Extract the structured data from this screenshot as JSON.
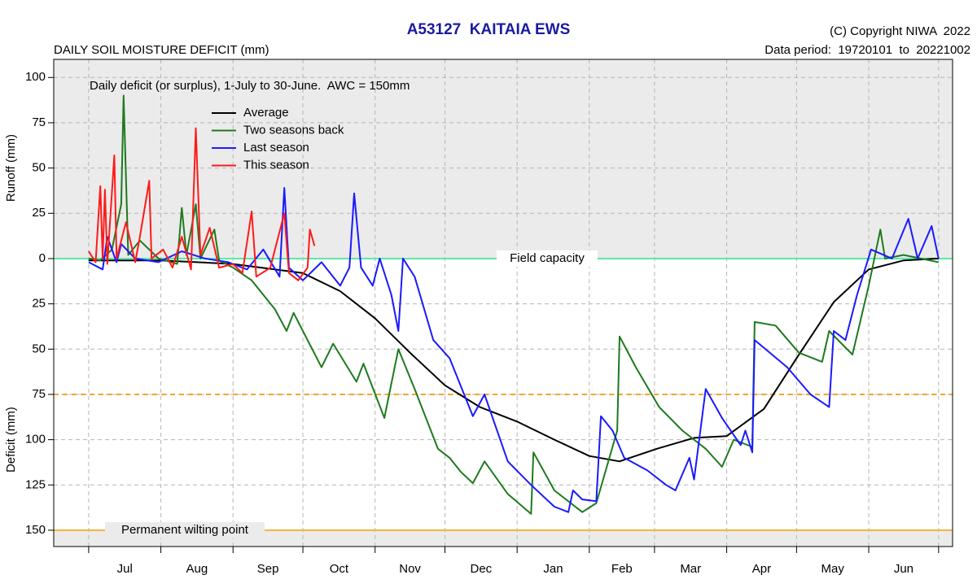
{
  "chart_data": {
    "type": "line",
    "title": "A53127  KAITAIA EWS",
    "subtitle": "DAILY SOIL MOISTURE DEFICIT (mm)",
    "copyright": "(C) Copyright NIWA  2022",
    "data_period": "Data period:  19720101  to  20221002",
    "annotation": "Daily deficit (or surplus), 1-July to 30-June.  AWC = 150mm",
    "y_label_top": "Runoff (mm)",
    "y_label_bottom": "Deficit (mm)",
    "categories": [
      "Jul",
      "Aug",
      "Sep",
      "Oct",
      "Nov",
      "Dec",
      "Jan",
      "Feb",
      "Mar",
      "Apr",
      "May",
      "Jun"
    ],
    "xlim": [
      -15,
      371
    ],
    "xticks": [
      0,
      31,
      62,
      92,
      123,
      153,
      184,
      215,
      243,
      274,
      304,
      335,
      365
    ],
    "ylim": [
      -159,
      110
    ],
    "yticks": [
      100,
      75,
      50,
      25,
      0,
      {
        "value": -25,
        "label": "25"
      },
      {
        "value": -50,
        "label": "50"
      },
      {
        "value": -75,
        "label": "75"
      },
      {
        "value": -100,
        "label": "100"
      },
      {
        "value": -125,
        "label": "125"
      },
      {
        "value": -150,
        "label": "150"
      }
    ],
    "grid": true,
    "reference_lines": [
      {
        "value": 0,
        "label": "Field capacity",
        "color": "#5ee8a8",
        "style": "solid"
      },
      {
        "value": -75,
        "color": "#f5a623",
        "style": "dashed"
      },
      {
        "value": -150,
        "label": "Permanent wilting point",
        "color": "#f5b53a",
        "style": "solid"
      }
    ],
    "series": [
      {
        "name": "Average",
        "color": "#000000",
        "x": [
          0,
          31,
          62,
          92,
          108,
          123,
          138,
          153,
          168,
          184,
          200,
          215,
          228,
          244,
          260,
          274,
          290,
          304,
          320,
          335,
          350,
          365
        ],
        "values": [
          -1,
          -1,
          -3,
          -8,
          -18,
          -33,
          -52,
          -70,
          -82,
          -90,
          -100,
          -109,
          -112,
          -105,
          -99,
          -98,
          -83,
          -55,
          -24,
          -6,
          -1,
          0
        ]
      },
      {
        "name": "Two seasons back",
        "color": "#1e7a1e",
        "x": [
          0,
          5,
          10,
          14,
          15,
          17,
          22,
          30,
          38,
          40,
          42,
          46,
          48,
          54,
          56,
          62,
          70,
          80,
          85,
          88,
          100,
          105,
          115,
          118,
          127,
          133,
          140,
          150,
          155,
          160,
          165,
          170,
          180,
          190,
          191,
          200,
          212,
          218,
          227,
          228,
          235,
          245,
          255,
          265,
          272,
          277,
          285,
          286,
          295,
          305,
          315,
          318,
          328,
          335,
          340,
          342,
          350,
          365
        ],
        "values": [
          0,
          -1,
          5,
          30,
          90,
          2,
          10,
          0,
          -3,
          28,
          2,
          30,
          0,
          16,
          -1,
          -5,
          -12,
          -28,
          -40,
          -30,
          -60,
          -47,
          -68,
          -58,
          -88,
          -50,
          -72,
          -105,
          -110,
          -118,
          -124,
          -112,
          -130,
          -141,
          -107,
          -128,
          -140,
          -135,
          -95,
          -43,
          -60,
          -82,
          -95,
          -105,
          -115,
          -100,
          -104,
          -35,
          -37,
          -52,
          -57,
          -40,
          -53,
          -15,
          16,
          0,
          2,
          -2
        ]
      },
      {
        "name": "Last season",
        "color": "#1a1aff",
        "x": [
          0,
          6,
          8,
          12,
          14,
          20,
          30,
          40,
          50,
          60,
          68,
          75,
          82,
          84,
          86,
          92,
          100,
          108,
          112,
          114,
          117,
          122,
          125,
          130,
          133,
          135,
          140,
          148,
          155,
          165,
          170,
          180,
          190,
          200,
          206,
          208,
          212,
          218,
          220,
          225,
          230,
          240,
          248,
          252,
          258,
          260,
          265,
          272,
          280,
          282,
          285,
          286,
          300,
          310,
          318,
          320,
          325,
          330,
          336,
          345,
          352,
          356,
          362,
          365
        ],
        "values": [
          -2,
          -6,
          12,
          -2,
          8,
          0,
          -2,
          4,
          0,
          -2,
          -6,
          5,
          -10,
          39,
          -5,
          -12,
          -2,
          -15,
          -5,
          36,
          -5,
          -15,
          0,
          -20,
          -40,
          0,
          -10,
          -45,
          -55,
          -87,
          -75,
          -112,
          -125,
          -137,
          -140,
          -128,
          -133,
          -134,
          -87,
          -95,
          -110,
          -117,
          -125,
          -128,
          -110,
          -122,
          -72,
          -88,
          -103,
          -95,
          -107,
          -45,
          -60,
          -75,
          -82,
          -40,
          -45,
          -20,
          5,
          0,
          22,
          0,
          18,
          0
        ]
      },
      {
        "name": "This season",
        "color": "#ff1a1a",
        "x": [
          0,
          3,
          5,
          6,
          7,
          8,
          11,
          12,
          16,
          20,
          22,
          26,
          27,
          32,
          36,
          40,
          44,
          46,
          48,
          52,
          56,
          62,
          66,
          70,
          72,
          78,
          84,
          86,
          90,
          94,
          95,
          97
        ],
        "values": [
          4,
          -2,
          40,
          0,
          38,
          -3,
          57,
          0,
          20,
          -2,
          12,
          43,
          0,
          5,
          -5,
          12,
          -6,
          72,
          2,
          17,
          -5,
          -3,
          -8,
          26,
          -10,
          -5,
          25,
          -8,
          -12,
          -5,
          16,
          7
        ]
      }
    ]
  }
}
